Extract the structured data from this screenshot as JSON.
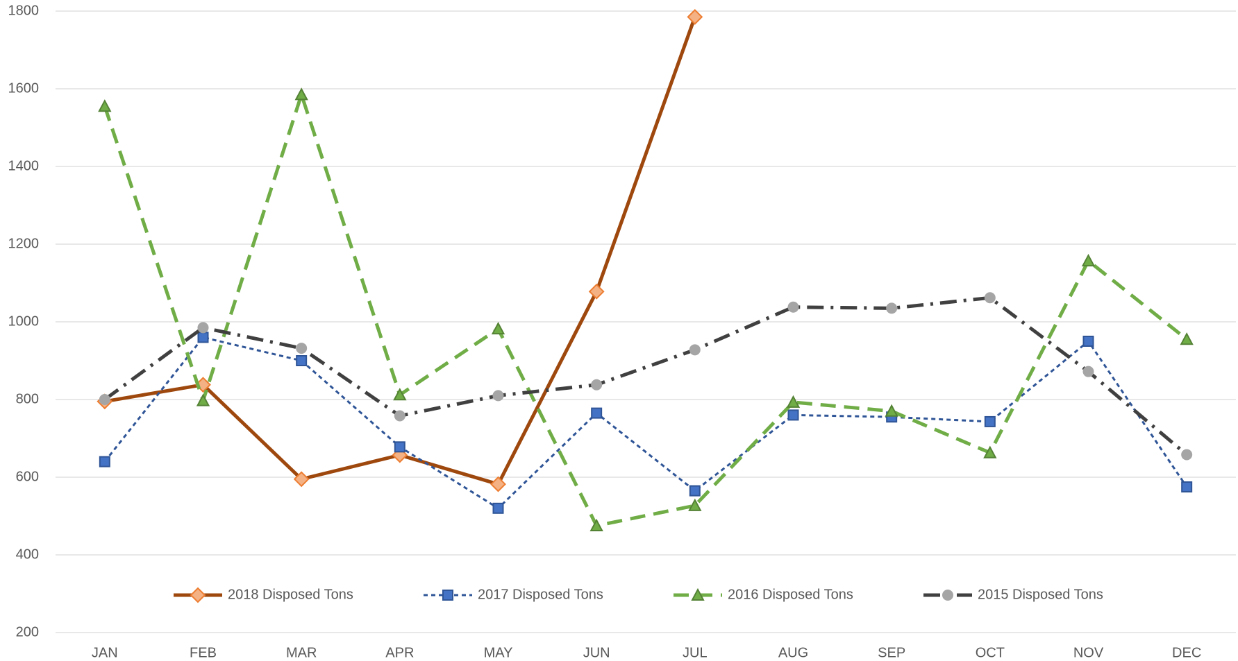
{
  "chart_data": {
    "type": "line",
    "categories": [
      "JAN",
      "FEB",
      "MAR",
      "APR",
      "MAY",
      "JUN",
      "JUL",
      "AUG",
      "SEP",
      "OCT",
      "NOV",
      "DEC"
    ],
    "series": [
      {
        "name": "2018 Disposed Tons",
        "color": "#9e480e",
        "marker": "diamond",
        "marker_fill": "#f4b183",
        "marker_stroke": "#ed7d31",
        "dash": "solid",
        "values": [
          795,
          838,
          595,
          657,
          582,
          1078,
          1785,
          null,
          null,
          null,
          null,
          null
        ]
      },
      {
        "name": "2017 Disposed Tons",
        "color": "#2f5597",
        "marker": "square",
        "marker_fill": "#4472c4",
        "marker_stroke": "#2f5597",
        "dash": "dot",
        "values": [
          640,
          960,
          900,
          678,
          520,
          765,
          565,
          760,
          755,
          743,
          950,
          575
        ]
      },
      {
        "name": "2016 Disposed Tons",
        "color": "#70ad47",
        "marker": "triangle",
        "marker_fill": "#70ad47",
        "marker_stroke": "#548235",
        "dash": "dash",
        "values": [
          1555,
          797,
          1585,
          812,
          982,
          475,
          527,
          793,
          770,
          663,
          1157,
          955
        ]
      },
      {
        "name": "2015 Disposed Tons",
        "color": "#404040",
        "marker": "circle",
        "marker_fill": "#a5a5a5",
        "marker_stroke": "#a5a5a5",
        "dash": "dashdot",
        "values": [
          800,
          985,
          932,
          758,
          810,
          838,
          928,
          1038,
          1035,
          1062,
          872,
          658
        ]
      }
    ],
    "ylim": [
      200,
      1800
    ],
    "yticks": [
      200,
      400,
      600,
      800,
      1000,
      1200,
      1400,
      1600,
      1800
    ],
    "grid": true,
    "legend": "bottom"
  }
}
